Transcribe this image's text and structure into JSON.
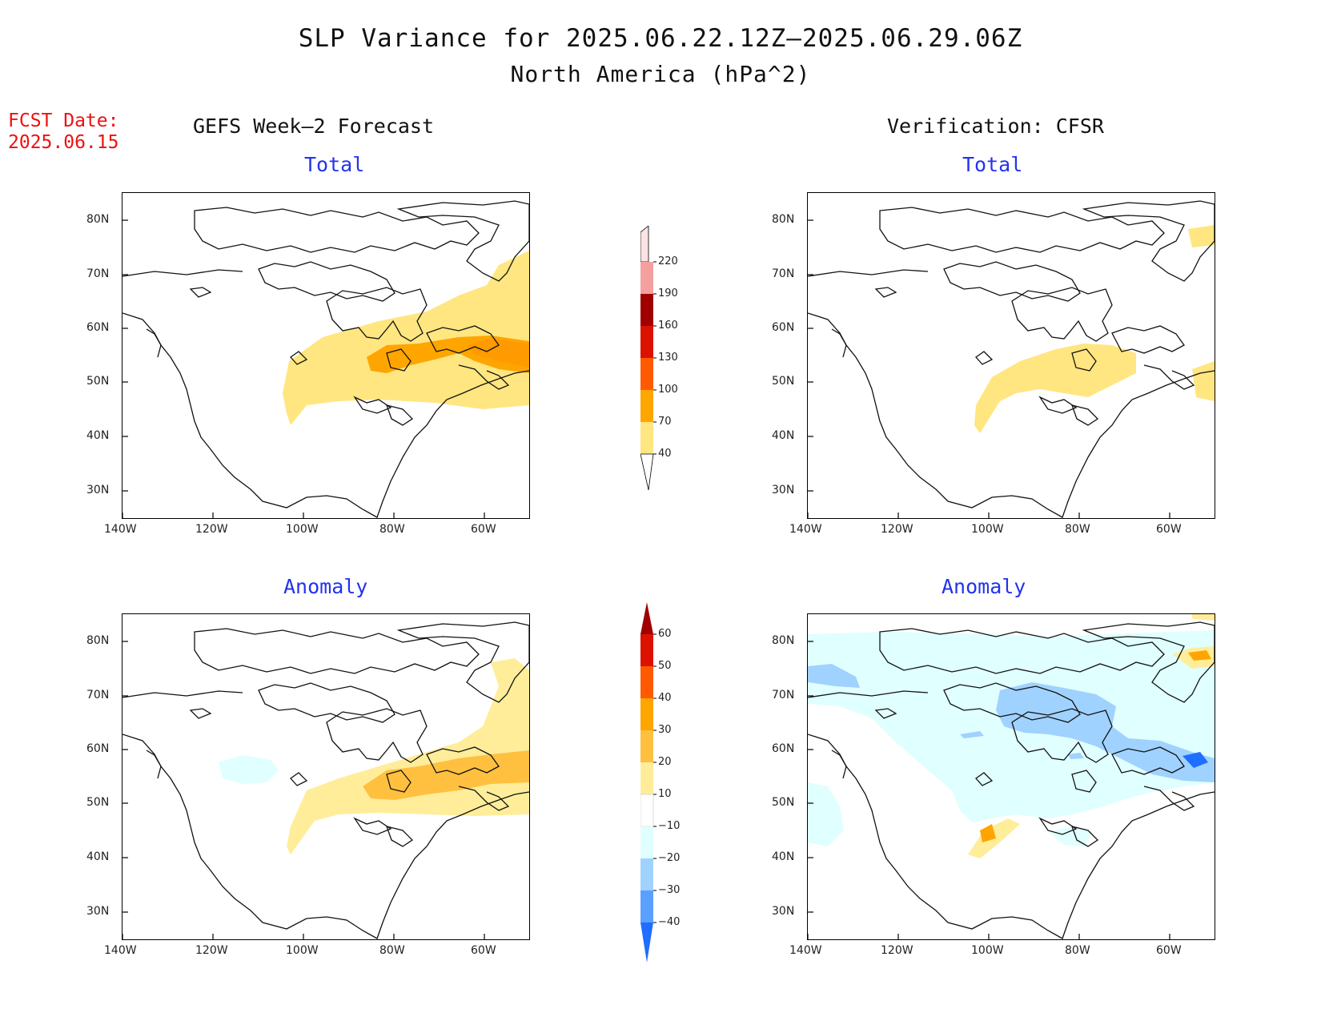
{
  "title": "SLP Variance for 2025.06.22.12Z–2025.06.29.06Z",
  "subtitle": "North America (hPa^2)",
  "fcst_label": "FCST Date:",
  "fcst_date": "2025.06.15",
  "columns": {
    "left": "GEFS Week–2 Forecast",
    "right": "Verification: CFSR"
  },
  "panels": {
    "forecast_total": {
      "label": "Total"
    },
    "forecast_anomaly": {
      "label": "Anomaly"
    },
    "verif_total": {
      "label": "Total"
    },
    "verif_anomaly": {
      "label": "Anomaly"
    }
  },
  "axes": {
    "lat_labels": [
      "80N",
      "70N",
      "60N",
      "50N",
      "40N",
      "30N"
    ],
    "lon_labels": [
      "140W",
      "120W",
      "100W",
      "80W",
      "60W"
    ]
  },
  "colorbar_total": {
    "levels": [
      "40",
      "70",
      "100",
      "130",
      "160",
      "190",
      "220"
    ],
    "colors": [
      "#ffe680",
      "#ffa500",
      "#ff5a00",
      "#dd1100",
      "#a00000",
      "#f4a0a0",
      "#fde2e2"
    ]
  },
  "colorbar_anomaly": {
    "levels": [
      "60",
      "50",
      "40",
      "30",
      "20",
      "10",
      "−10",
      "−20",
      "−30",
      "−40"
    ],
    "colors_pos": [
      "#a00000",
      "#dd1100",
      "#ff5a00",
      "#ffa500",
      "#ffc040",
      "#ffed9a"
    ],
    "colors_neg": [
      "#ffffff",
      "#e0ffff",
      "#a0d2ff",
      "#5aa0ff",
      "#1e6eff"
    ]
  }
}
